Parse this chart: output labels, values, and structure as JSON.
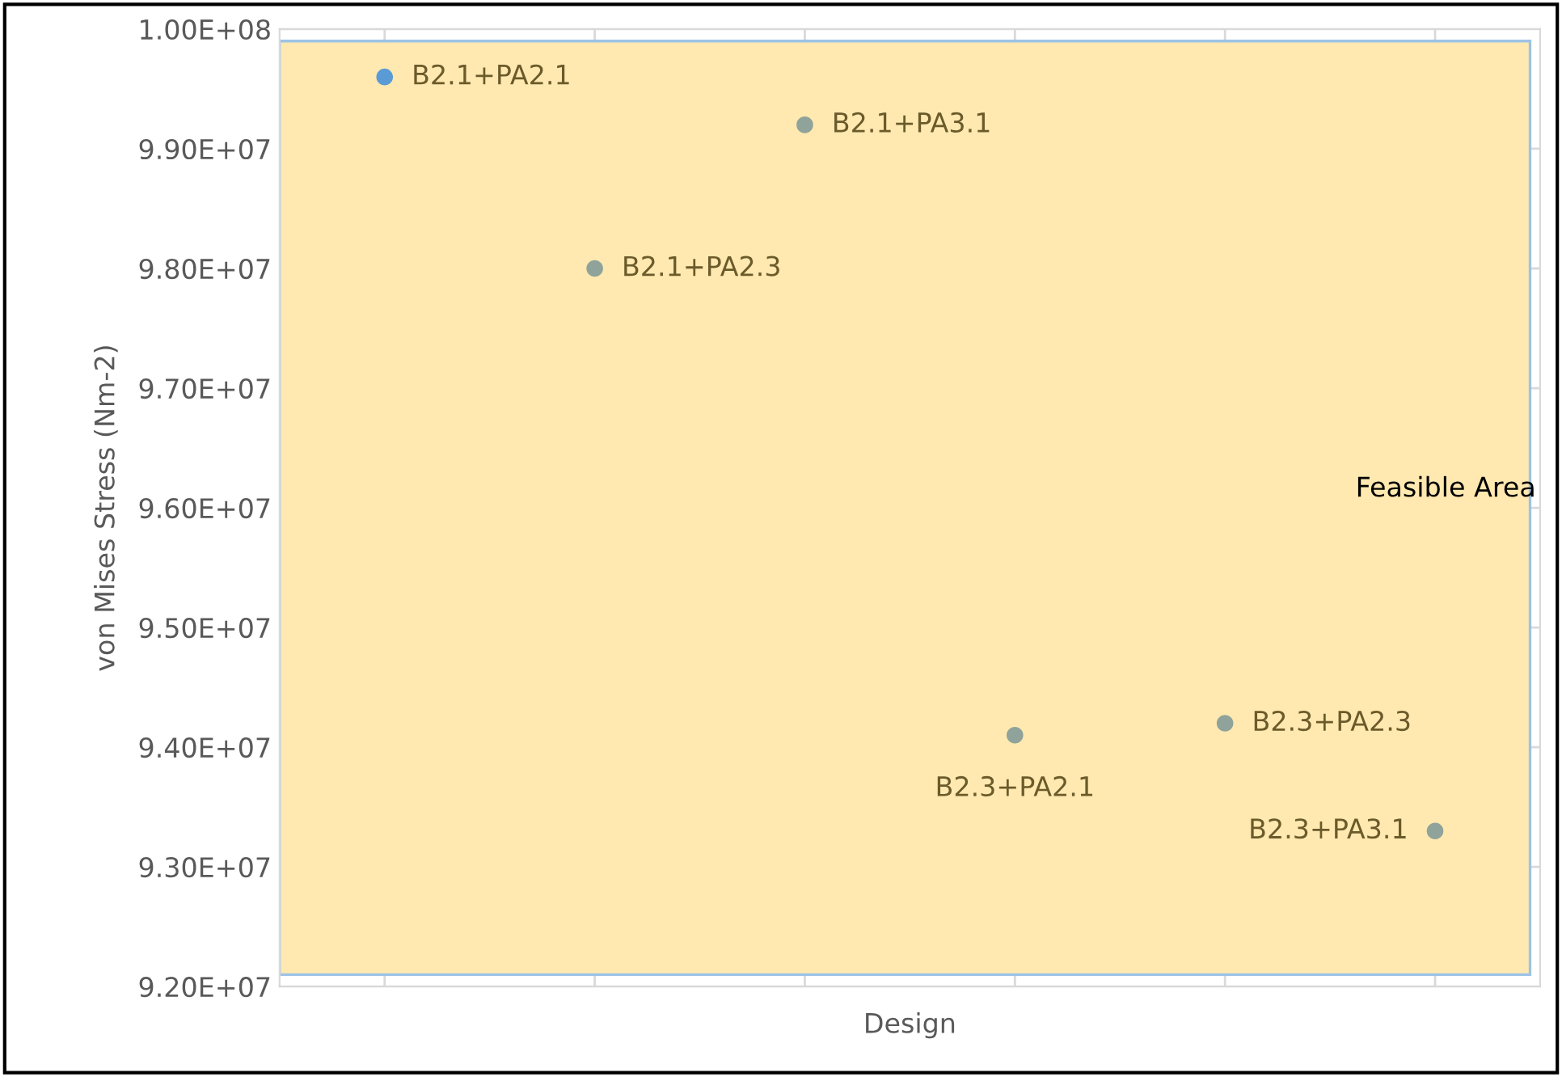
{
  "chart_data": {
    "type": "scatter",
    "xlabel": "Design",
    "ylabel": "von Mises Stress (Nm-2)",
    "categories": [
      null,
      null,
      null,
      null,
      null,
      null
    ],
    "values": [
      99600000,
      98000000,
      99200000,
      94100000,
      94200000,
      93300000
    ],
    "colors": [
      "#5b9bd5",
      "#8fa39a",
      "#8fa39a",
      "#8fa39a",
      "#8fa39a",
      "#8fa39a"
    ],
    "value_labels": [
      "B2.1+PA2.1",
      "B2.1+PA2.3",
      "B2.1+PA3.1",
      "B2.3+PA2.1",
      "B2.3+PA2.3",
      "B2.3+PA3.1"
    ],
    "ylim": [
      92000000,
      100000000
    ],
    "yticks": [
      {
        "value": 92000000,
        "label": "9.20E+07"
      },
      {
        "value": 93000000,
        "label": "9.30E+07"
      },
      {
        "value": 94000000,
        "label": "9.40E+07"
      },
      {
        "value": 95000000,
        "label": "9.50E+07"
      },
      {
        "value": 96000000,
        "label": "9.60E+07"
      },
      {
        "value": 97000000,
        "label": "9.70E+07"
      },
      {
        "value": 98000000,
        "label": "9.80E+07"
      },
      {
        "value": 99000000,
        "label": "9.90E+07"
      },
      {
        "value": 100000000,
        "label": "1.00E+08"
      }
    ],
    "bands": [
      {
        "axis": "y",
        "from": 92100000,
        "to": 99900000,
        "label": "Feasible Area",
        "color": "#ffe9b0"
      }
    ],
    "grid": true,
    "marker": "circle",
    "tick_labels": "y"
  }
}
